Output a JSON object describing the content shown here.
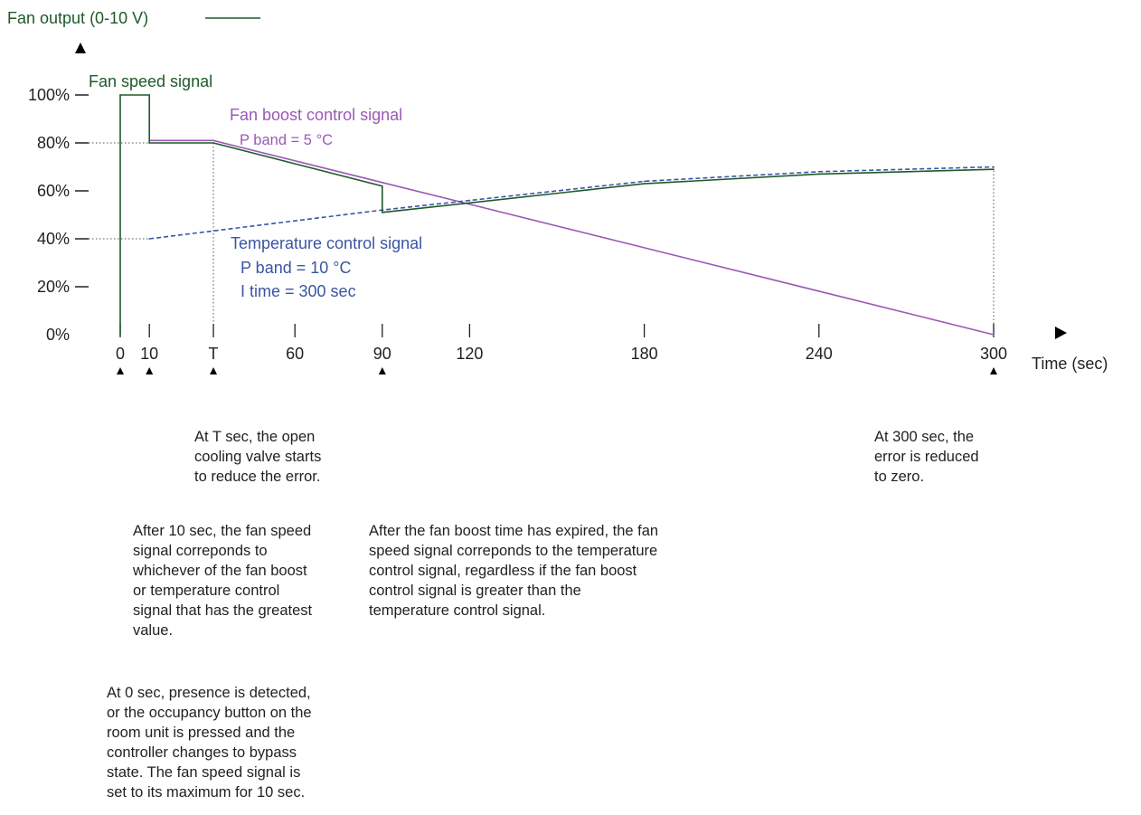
{
  "chart_data": {
    "type": "line",
    "y_axis_title": "Fan output (0-10 V)",
    "x_axis_title": "Time (sec)",
    "y_ticks": [
      "0%",
      "20%",
      "40%",
      "60%",
      "80%",
      "100%"
    ],
    "y_tick_values": [
      0,
      20,
      40,
      60,
      80,
      100
    ],
    "x_ticks": [
      "0",
      "10",
      "T",
      "60",
      "90",
      "120",
      "180",
      "240",
      "300"
    ],
    "x_tick_values": [
      0,
      10,
      32,
      60,
      90,
      120,
      180,
      240,
      300
    ],
    "xlim": [
      0,
      300
    ],
    "ylim": [
      0,
      100
    ],
    "event_markers": [
      0,
      10,
      32,
      90,
      300
    ],
    "grid": false,
    "colors": {
      "fan_speed": "#1e5a2a",
      "fan_boost": "#9b59b6",
      "temperature": "#3a55a4",
      "text": "#231f20"
    },
    "series": [
      {
        "key": "fan_speed",
        "name": "Fan speed signal",
        "style": "solid",
        "x": [
          0,
          0,
          10,
          10,
          32,
          90,
          90,
          120,
          180,
          240,
          300
        ],
        "y": [
          0,
          100,
          100,
          80,
          80,
          62,
          51,
          55,
          63,
          67,
          69
        ]
      },
      {
        "key": "fan_boost",
        "name": "Fan boost control signal",
        "style": "solid",
        "x": [
          10,
          32,
          300
        ],
        "y": [
          81,
          81,
          0
        ]
      },
      {
        "key": "temperature",
        "name": "Temperature control signal",
        "style": "dashed",
        "x": [
          10,
          90,
          120,
          180,
          240,
          300
        ],
        "y": [
          40,
          52,
          56,
          64,
          68,
          70
        ]
      }
    ],
    "annotations": {
      "fan_speed_label": "Fan speed signal",
      "fan_boost_label": "Fan boost control signal",
      "fan_boost_pband": "P band = 5 °C",
      "temperature_label": "Temperature control signal",
      "temperature_pband": "P band = 10 °C",
      "temperature_itime": "I time = 300 sec"
    }
  },
  "notes": {
    "t_sec": [
      "At T sec, the open",
      "cooling valve starts",
      "to reduce the error."
    ],
    "sec_300": [
      "At 300 sec, the",
      "error is reduced",
      "to zero."
    ],
    "after_10": [
      "After 10 sec, the fan speed",
      "signal correponds to",
      "whichever of the fan boost",
      "or temperature control",
      "signal that has the greatest",
      "value."
    ],
    "after_boost": [
      "After the fan boost time has expired, the fan",
      "speed signal correponds to the temperature",
      "control signal, regardless if the fan boost",
      "control signal is greater than the",
      "temperature control signal."
    ],
    "at_0": [
      "At 0 sec, presence is detected,",
      "or the occupancy button on the",
      "room unit is pressed and the",
      "controller changes to bypass",
      "state. The fan speed signal is",
      "set to its maximum for 10 sec."
    ]
  }
}
